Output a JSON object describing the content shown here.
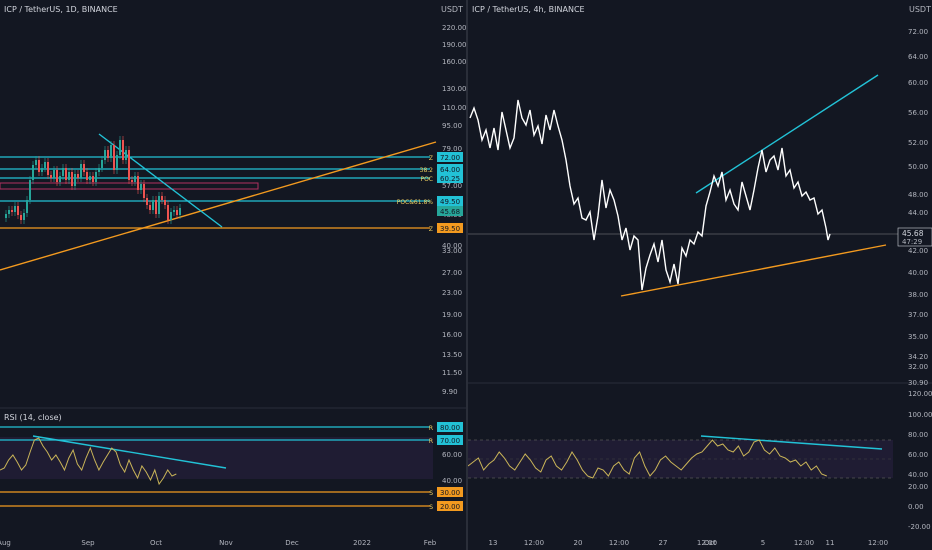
{
  "colors": {
    "background": "#131722",
    "grid": "#1e222d",
    "axis_text": "#b2b5be",
    "trend_cyan": "#22c2d6",
    "trend_orange": "#f39a1f",
    "line_white": "#ffffff",
    "rsi_line": "#c9b458",
    "rsi_band": "#2a2040",
    "up_candle": "#26a69a",
    "down_candle": "#ef5350",
    "price_label_green": "#26a69a",
    "zone_magenta": "#b03060"
  },
  "left_chart": {
    "title": "ICP / TetherUS, 1D, BINANCE",
    "currency": "USDT",
    "price_ticks": [
      "220.00",
      "190.00",
      "160.00",
      "130.00",
      "110.00",
      "95.00",
      "79.00",
      "65.00",
      "57.00",
      "48.00",
      "40.00",
      "33.00",
      "27.00",
      "23.00",
      "19.00",
      "16.00",
      "13.50",
      "11.50",
      "9.90"
    ],
    "price_labels": [
      {
        "text": "72.00",
        "prefix": "Z"
      },
      {
        "text": "64.00",
        "prefix": "38.2"
      },
      {
        "text": "60.25",
        "prefix": "POC"
      },
      {
        "text": "49.50",
        "prefix": "POC&61.8%"
      },
      {
        "text": "45.68",
        "prefix": ""
      },
      {
        "text": "39.50",
        "prefix": "Z"
      }
    ],
    "rsi": {
      "title": "RSI (14, close)",
      "ticks": [
        "60.00",
        "40.00"
      ],
      "levels": [
        {
          "text": "80.00",
          "prefix": "R",
          "color": "#22c2d6"
        },
        {
          "text": "70.00",
          "prefix": "R",
          "color": "#22c2d6"
        },
        {
          "text": "30.00",
          "prefix": "S",
          "color": "#f39a1f"
        },
        {
          "text": "20.00",
          "prefix": "S",
          "color": "#f39a1f"
        }
      ]
    },
    "time_axis": [
      "Aug",
      "Sep",
      "Oct",
      "Nov",
      "Dec",
      "2022",
      "Feb"
    ]
  },
  "right_chart": {
    "title": "ICP / TetherUS, 4h, BINANCE",
    "currency": "USDT",
    "price_ticks": [
      "72.00",
      "64.00",
      "60.00",
      "56.00",
      "52.00",
      "50.00",
      "48.00",
      "44.00",
      "42.00",
      "40.00",
      "38.00",
      "37.00",
      "35.00",
      "34.20",
      "32.00",
      "30.90"
    ],
    "current_price": "45.68",
    "countdown": "47:29",
    "rsi_ticks": [
      "120.00",
      "100.00",
      "80.00",
      "60.00",
      "40.00",
      "20.00",
      "0.00",
      "-20.00"
    ],
    "time_axis": [
      "13",
      "12:00",
      "20",
      "12:00",
      "27",
      "12:00",
      "Oct",
      "5",
      "12:00",
      "11",
      "12:00"
    ]
  }
}
